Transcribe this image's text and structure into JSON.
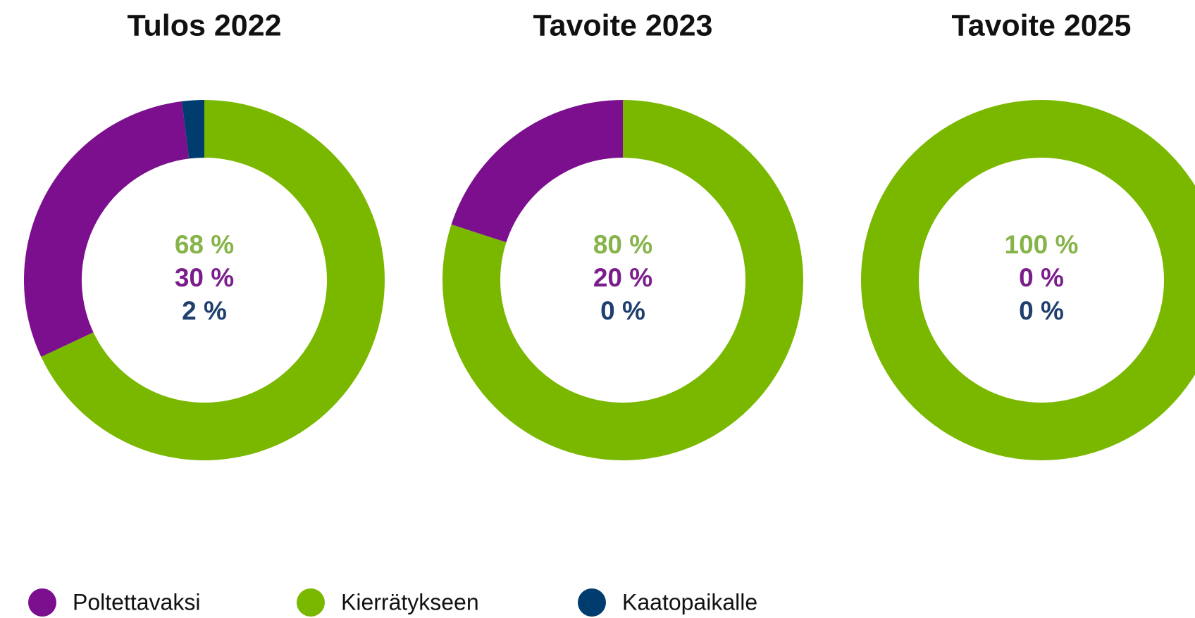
{
  "chart_data": [
    {
      "type": "pie",
      "title": "Tulos 2022",
      "values": [
        68,
        30,
        2
      ],
      "value_labels": [
        "68 %",
        "30 %",
        "2 %"
      ],
      "colors": [
        "#7ab800",
        "#7b0f8e",
        "#003d6e"
      ],
      "label_colors": [
        "#86b34a",
        "#7b1e8c",
        "#1f3f6e"
      ]
    },
    {
      "type": "pie",
      "title": "Tavoite 2023",
      "values": [
        80,
        20,
        0
      ],
      "value_labels": [
        "80 %",
        "20 %",
        "0 %"
      ],
      "colors": [
        "#7ab800",
        "#7b0f8e",
        "#003d6e"
      ],
      "label_colors": [
        "#86b34a",
        "#7b1e8c",
        "#1f3f6e"
      ]
    },
    {
      "type": "pie",
      "title": "Tavoite 2025",
      "values": [
        100,
        0,
        0
      ],
      "value_labels": [
        "100 %",
        "0 %",
        "0 %"
      ],
      "colors": [
        "#7ab800",
        "#7b0f8e",
        "#003d6e"
      ],
      "label_colors": [
        "#86b34a",
        "#7b1e8c",
        "#1f3f6e"
      ]
    }
  ],
  "legend": [
    {
      "name": "Poltettavaksi",
      "color": "#7b0f8e"
    },
    {
      "name": "Kierrätykseen",
      "color": "#7ab800"
    },
    {
      "name": "Kaatopaikalle",
      "color": "#003d6e"
    }
  ]
}
